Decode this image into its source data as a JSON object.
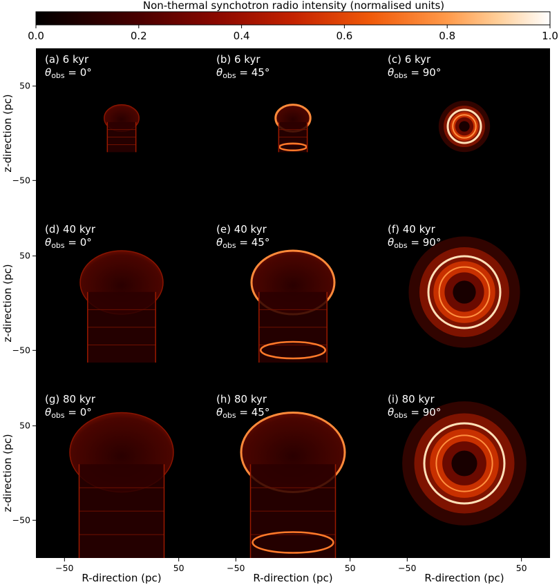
{
  "chart_data": {
    "type": "heatmap",
    "colorbar": {
      "label": "Non-thermal synchotron radio intensity (normalised units)",
      "colormap": "gist_heat",
      "range": [
        0.0,
        1.0
      ],
      "ticks": [
        "0.0",
        "0.2",
        "0.4",
        "0.6",
        "0.8",
        "1.0"
      ]
    },
    "x_axis": {
      "label": "R-direction (pc)",
      "ticks": [
        "−50",
        "50"
      ],
      "tick_values": [
        -50,
        50
      ],
      "range": [
        -75,
        75
      ]
    },
    "y_axis": {
      "label": "z-direction (pc)",
      "ticks": [
        "50",
        "−50"
      ],
      "tick_values": [
        50,
        -50
      ],
      "range": [
        -90,
        90
      ]
    },
    "panels": [
      {
        "label": "(a) 6 kyr",
        "theta": "0",
        "age_kyr": 6,
        "theta_obs_deg": 0,
        "shape": "side"
      },
      {
        "label": "(b) 6 kyr",
        "theta": "45",
        "age_kyr": 6,
        "theta_obs_deg": 45,
        "shape": "inclined"
      },
      {
        "label": "(c) 6 kyr",
        "theta": "90",
        "age_kyr": 6,
        "theta_obs_deg": 90,
        "shape": "faceon"
      },
      {
        "label": "(d) 40 kyr",
        "theta": "0",
        "age_kyr": 40,
        "theta_obs_deg": 0,
        "shape": "side"
      },
      {
        "label": "(e) 40 kyr",
        "theta": "45",
        "age_kyr": 40,
        "theta_obs_deg": 45,
        "shape": "inclined"
      },
      {
        "label": "(f) 40 kyr",
        "theta": "90",
        "age_kyr": 40,
        "theta_obs_deg": 90,
        "shape": "faceon"
      },
      {
        "label": "(g) 80 kyr",
        "theta": "0",
        "age_kyr": 80,
        "theta_obs_deg": 0,
        "shape": "side"
      },
      {
        "label": "(h) 80 kyr",
        "theta": "45",
        "age_kyr": 80,
        "theta_obs_deg": 45,
        "shape": "inclined"
      },
      {
        "label": "(i) 80 kyr",
        "theta": "90",
        "age_kyr": 80,
        "theta_obs_deg": 90,
        "shape": "faceon"
      }
    ],
    "grid": false
  },
  "symbols": {
    "theta_obs": "θ",
    "theta_sub": "obs",
    "deg": "°"
  }
}
